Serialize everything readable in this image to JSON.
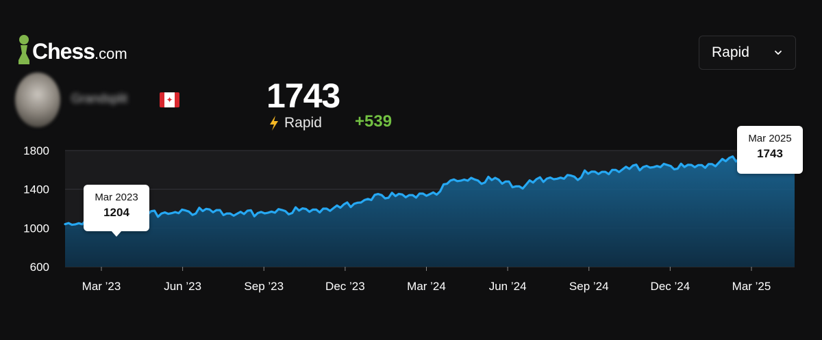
{
  "brand": {
    "name": "Chess",
    "suffix": ".com"
  },
  "mode_selector": {
    "selected": "Rapid"
  },
  "player": {
    "username": "Grandsplit",
    "country_flag": "canada-flag"
  },
  "summary": {
    "rating": "1743",
    "mode_label": "Rapid",
    "change": "+539"
  },
  "colors": {
    "line": "#26a8f3",
    "gain": "#72c042",
    "bolt": "#f5b824",
    "background": "#0f0f10"
  },
  "chart_data": {
    "type": "area",
    "title": "",
    "xlabel": "",
    "ylabel": "",
    "ylim": [
      600,
      1800
    ],
    "y_ticks": [
      600,
      1000,
      1400,
      1800
    ],
    "x_tick_labels": [
      "Mar ’23",
      "Jun ’23",
      "Sep ’23",
      "Dec ’23",
      "Mar ’24",
      "Jun ’24",
      "Sep ’24",
      "Dec ’24",
      "Mar ’25"
    ],
    "grid": "horizontal",
    "series": [
      {
        "x": [
          "2023-01",
          "2023-01",
          "2023-02",
          "2023-02",
          "2023-03",
          "2023-03",
          "2023-04",
          "2023-04",
          "2023-05",
          "2023-05",
          "2023-06",
          "2023-06",
          "2023-07",
          "2023-07",
          "2023-08",
          "2023-08",
          "2023-09",
          "2023-09",
          "2023-10",
          "2023-10",
          "2023-11",
          "2023-11",
          "2023-12",
          "2023-12",
          "2024-01",
          "2024-01",
          "2024-02",
          "2024-02",
          "2024-03",
          "2024-03",
          "2024-04",
          "2024-04",
          "2024-05",
          "2024-05",
          "2024-06",
          "2024-06",
          "2024-07",
          "2024-07",
          "2024-08",
          "2024-08",
          "2024-09",
          "2024-09",
          "2024-10",
          "2024-10",
          "2024-11",
          "2024-11",
          "2024-12",
          "2024-12",
          "2025-01",
          "2025-01",
          "2025-02",
          "2025-02",
          "2025-03",
          "2025-03"
        ],
        "values": [
          1040,
          1050,
          1065,
          1100,
          1204,
          1130,
          1140,
          1150,
          1165,
          1170,
          1175,
          1185,
          1150,
          1145,
          1155,
          1170,
          1175,
          1180,
          1190,
          1200,
          1210,
          1250,
          1300,
          1340,
          1330,
          1340,
          1355,
          1345,
          1490,
          1500,
          1490,
          1495,
          1480,
          1430,
          1470,
          1510,
          1520,
          1530,
          1560,
          1580,
          1600,
          1610,
          1630,
          1640,
          1640,
          1630,
          1650,
          1660,
          1690,
          1720,
          1725,
          1730,
          1735,
          1743
        ]
      }
    ],
    "annotations": [
      {
        "date": "Mar 2023",
        "value": "1204"
      },
      {
        "date": "Mar 2025",
        "value": "1743"
      }
    ]
  }
}
